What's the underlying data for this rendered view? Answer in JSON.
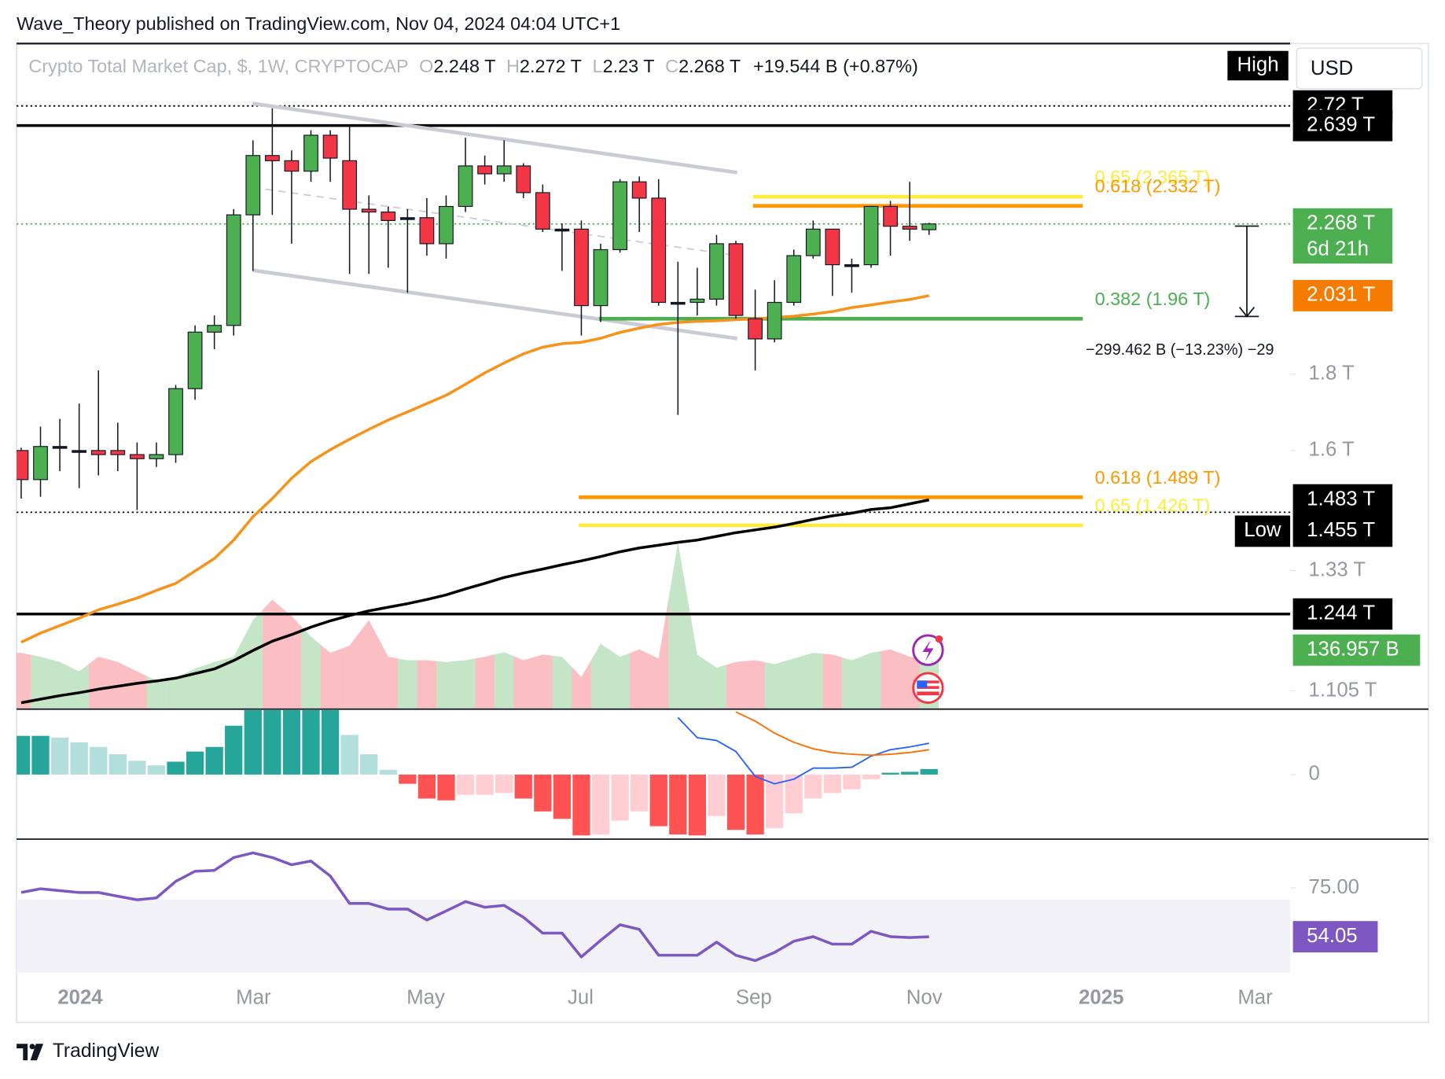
{
  "header": "Wave_Theory published on TradingView.com, Nov 04, 2024 04:04 UTC+1",
  "footer": "TradingView",
  "chart_data": [
    {
      "type": "candlestick",
      "title": "Crypto Total Market Cap, $, 1W, CRYPTOCAP",
      "legend": [
        {
          "key": "O",
          "label": "2.248 T"
        },
        {
          "key": "H",
          "label": "2.272 T"
        },
        {
          "key": "L",
          "label": "2.23 T"
        },
        {
          "key": "C",
          "label": "2.268 T"
        }
      ],
      "change": "+19.544 B (+0.87%)",
      "currency": "USD",
      "high_label": "High",
      "x_labels": [
        "2024",
        "Mar",
        "May",
        "Jul",
        "Sep",
        "Nov",
        "2025",
        "Mar"
      ],
      "open": [
        1.6,
        1.53,
        1.61,
        1.6,
        1.6,
        1.6,
        1.59,
        1.58,
        1.59,
        1.76,
        1.92,
        1.94,
        2.3,
        2.52,
        2.5,
        2.46,
        2.6,
        2.5,
        2.32,
        2.31,
        2.29,
        2.29,
        2.2,
        2.33,
        2.48,
        2.45,
        2.48,
        2.38,
        2.25,
        2.25,
        2.0,
        2.18,
        2.42,
        2.36,
        2.01,
        2.01,
        2.02,
        2.2,
        1.96,
        1.9,
        2.01,
        2.16,
        2.25,
        2.13,
        2.13,
        2.33,
        2.26,
        2.248
      ],
      "high": [
        1.607,
        1.66,
        1.68,
        1.72,
        1.81,
        1.67,
        1.62,
        1.62,
        1.77,
        1.94,
        1.97,
        2.32,
        2.58,
        2.71,
        2.54,
        2.62,
        2.62,
        2.64,
        2.37,
        2.33,
        2.32,
        2.36,
        2.37,
        2.59,
        2.52,
        2.58,
        2.49,
        2.41,
        2.27,
        2.28,
        2.2,
        2.43,
        2.44,
        2.43,
        2.14,
        2.12,
        2.23,
        2.21,
        2.05,
        2.08,
        2.18,
        2.28,
        2.25,
        2.15,
        2.33,
        2.35,
        2.42,
        2.272
      ],
      "low": [
        1.486,
        1.49,
        1.55,
        1.51,
        1.54,
        1.55,
        1.46,
        1.56,
        1.57,
        1.73,
        1.87,
        1.91,
        2.11,
        2.3,
        2.2,
        2.42,
        2.42,
        2.1,
        2.1,
        2.12,
        2.04,
        2.16,
        2.15,
        2.31,
        2.41,
        2.42,
        2.36,
        2.24,
        2.11,
        1.91,
        1.95,
        2.17,
        2.24,
        2.0,
        1.69,
        1.97,
        2.0,
        1.96,
        1.81,
        1.89,
        2.0,
        2.15,
        2.03,
        2.04,
        2.12,
        2.16,
        2.21,
        2.23
      ],
      "close": [
        1.53,
        1.61,
        1.61,
        1.6,
        1.59,
        1.59,
        1.58,
        1.59,
        1.76,
        1.92,
        1.94,
        2.3,
        2.52,
        2.5,
        2.46,
        2.6,
        2.51,
        2.32,
        2.31,
        2.28,
        2.29,
        2.2,
        2.33,
        2.48,
        2.45,
        2.48,
        2.38,
        2.25,
        2.25,
        2.0,
        2.18,
        2.42,
        2.36,
        2.01,
        2.01,
        2.02,
        2.2,
        1.97,
        1.9,
        2.01,
        2.16,
        2.25,
        2.13,
        2.13,
        2.33,
        2.26,
        2.25,
        2.268
      ],
      "colors": {
        "up": "#4caf50",
        "down": "#f23645"
      },
      "series": [
        {
          "color": "#f7931a",
          "values": [
            1.191,
            1.208,
            1.222,
            1.236,
            1.252,
            1.263,
            1.275,
            1.29,
            1.304,
            1.329,
            1.355,
            1.394,
            1.445,
            1.486,
            1.533,
            1.573,
            1.602,
            1.628,
            1.653,
            1.677,
            1.698,
            1.72,
            1.742,
            1.772,
            1.803,
            1.831,
            1.857,
            1.876,
            1.886,
            1.89,
            1.902,
            1.919,
            1.932,
            1.943,
            1.949,
            1.952,
            1.954,
            1.957,
            1.96,
            1.963,
            1.968,
            1.974,
            1.982,
            1.994,
            2.002,
            2.011,
            2.019,
            2.031
          ]
        },
        {
          "color": "#000000",
          "values": [
            1.085,
            1.091,
            1.097,
            1.102,
            1.108,
            1.113,
            1.118,
            1.122,
            1.127,
            1.135,
            1.143,
            1.158,
            1.176,
            1.193,
            1.205,
            1.219,
            1.231,
            1.241,
            1.25,
            1.257,
            1.264,
            1.272,
            1.281,
            1.293,
            1.304,
            1.316,
            1.325,
            1.333,
            1.342,
            1.35,
            1.359,
            1.369,
            1.377,
            1.383,
            1.389,
            1.394,
            1.402,
            1.41,
            1.416,
            1.422,
            1.43,
            1.439,
            1.447,
            1.453,
            1.461,
            1.465,
            1.474,
            1.483
          ]
        }
      ],
      "ylim": [
        1.076,
        2.99
      ],
      "log_scale": true,
      "yticks": [
        {
          "value": 1.8,
          "label": "1.8 T"
        },
        {
          "value": 1.6,
          "label": "1.6 T"
        },
        {
          "value": 1.33,
          "label": "1.33 T"
        },
        {
          "value": 1.105,
          "label": "1.105 T"
        }
      ],
      "price_labels": [
        {
          "value": 2.72,
          "label": "2.72 T",
          "color": "#000000",
          "line": "dotted"
        },
        {
          "value": 2.639,
          "label": "2.639 T",
          "color": "#000000",
          "line": "solid"
        },
        {
          "value": 2.268,
          "label": "2.268 T",
          "color": "#4caf50",
          "line": "dotted",
          "countdown": "6d 21h"
        },
        {
          "value": 2.031,
          "label": "2.031 T",
          "color": "#f57c00"
        },
        {
          "value": 1.483,
          "label": "1.483 T",
          "color": "#000000"
        },
        {
          "value": 1.455,
          "label": "1.455 T",
          "color": "#000000",
          "line": "dotted",
          "badge": "Low"
        },
        {
          "value": 1.244,
          "label": "1.244 T",
          "color": "#000000",
          "line": "solid"
        }
      ],
      "levels": [
        {
          "value": 2.365,
          "label": "0.65 (2.365 T)",
          "color": "#ffeb3b"
        },
        {
          "value": 2.332,
          "label": "0.618 (2.332 T)",
          "color": "#ff9800"
        },
        {
          "value": 1.96,
          "label": "0.382 (1.96 T)",
          "color": "#4caf50"
        },
        {
          "value": 1.489,
          "label": "0.618 (1.489 T)",
          "color": "#ff9800"
        },
        {
          "value": 1.426,
          "label": "0.65 (1.426 T)",
          "color": "#ffeb3b"
        }
      ],
      "measure": "−299.462 B (−13.23%) −29",
      "volume": {
        "ylim": [
          0,
          316
        ],
        "last_label": "136.957 B",
        "values": [
          158,
          147,
          132,
          105,
          147,
          132,
          105,
          79,
          87,
          113,
          132,
          147,
          252,
          310,
          263,
          205,
          158,
          179,
          252,
          147,
          137,
          137,
          132,
          137,
          147,
          160,
          137,
          153,
          147,
          89,
          184,
          147,
          168,
          142,
          473,
          153,
          116,
          132,
          137,
          126,
          142,
          158,
          153,
          137,
          158,
          168,
          147,
          136.957
        ]
      }
    },
    {
      "type": "macd",
      "ylim": [
        -70,
        70
      ],
      "yticks": [
        0
      ],
      "histogram": [
        42,
        42,
        40,
        35,
        30,
        22,
        15,
        10,
        14,
        25,
        30,
        53,
        70,
        70,
        70,
        70,
        70,
        43,
        22,
        5,
        -10,
        -26,
        -28,
        -22,
        -22,
        -20,
        -26,
        -40,
        -48,
        -66,
        -65,
        -50,
        -40,
        -56,
        -65,
        -66,
        -45,
        -60,
        -65,
        -58,
        -42,
        -26,
        -20,
        -16,
        -5,
        2,
        3,
        6
      ],
      "colors": {
        "up_rising": "#26a69a",
        "up_falling": "#b2dfdb",
        "down_falling": "#ff5252",
        "down_rising": "#ffcdd2"
      },
      "series": [
        {
          "color": "#2962ff",
          "values": [
            null,
            null,
            null,
            null,
            null,
            null,
            null,
            null,
            null,
            null,
            null,
            null,
            null,
            null,
            null,
            null,
            null,
            null,
            null,
            null,
            null,
            null,
            null,
            null,
            null,
            null,
            null,
            null,
            null,
            null,
            null,
            null,
            null,
            null,
            62,
            40,
            37,
            25,
            -2,
            -10,
            -5,
            7,
            7,
            8,
            20,
            27,
            30,
            34
          ]
        },
        {
          "color": "#ff6d00",
          "values": [
            null,
            null,
            null,
            null,
            null,
            null,
            null,
            null,
            null,
            null,
            null,
            null,
            null,
            null,
            null,
            null,
            null,
            null,
            null,
            null,
            null,
            null,
            null,
            null,
            null,
            null,
            null,
            null,
            null,
            null,
            null,
            null,
            null,
            null,
            null,
            null,
            null,
            68,
            58,
            45,
            35,
            28,
            24,
            22,
            21,
            22,
            24,
            27
          ]
        }
      ]
    },
    {
      "type": "line",
      "ylim": [
        38.6,
        95.9
      ],
      "yticks": [
        {
          "value": 75,
          "label": "75.00"
        }
      ],
      "band": [
        30,
        70
      ],
      "color": "#7e57c2",
      "values": [
        73.0,
        74.6,
        73.8,
        73.0,
        73.0,
        71.4,
        69.9,
        70.7,
        77.8,
        82.1,
        82.5,
        88.0,
        90.0,
        88.0,
        84.9,
        86.5,
        80.1,
        68.3,
        68.3,
        65.9,
        65.9,
        61.2,
        65.1,
        69.1,
        66.7,
        67.5,
        62.4,
        55.6,
        55.6,
        45.4,
        52.5,
        59.2,
        57.2,
        46.1,
        46.1,
        46.1,
        51.7,
        46.1,
        43.8,
        47.3,
        52.1,
        54.1,
        50.9,
        50.9,
        56.4,
        54.1,
        53.7,
        54.05
      ]
    }
  ]
}
